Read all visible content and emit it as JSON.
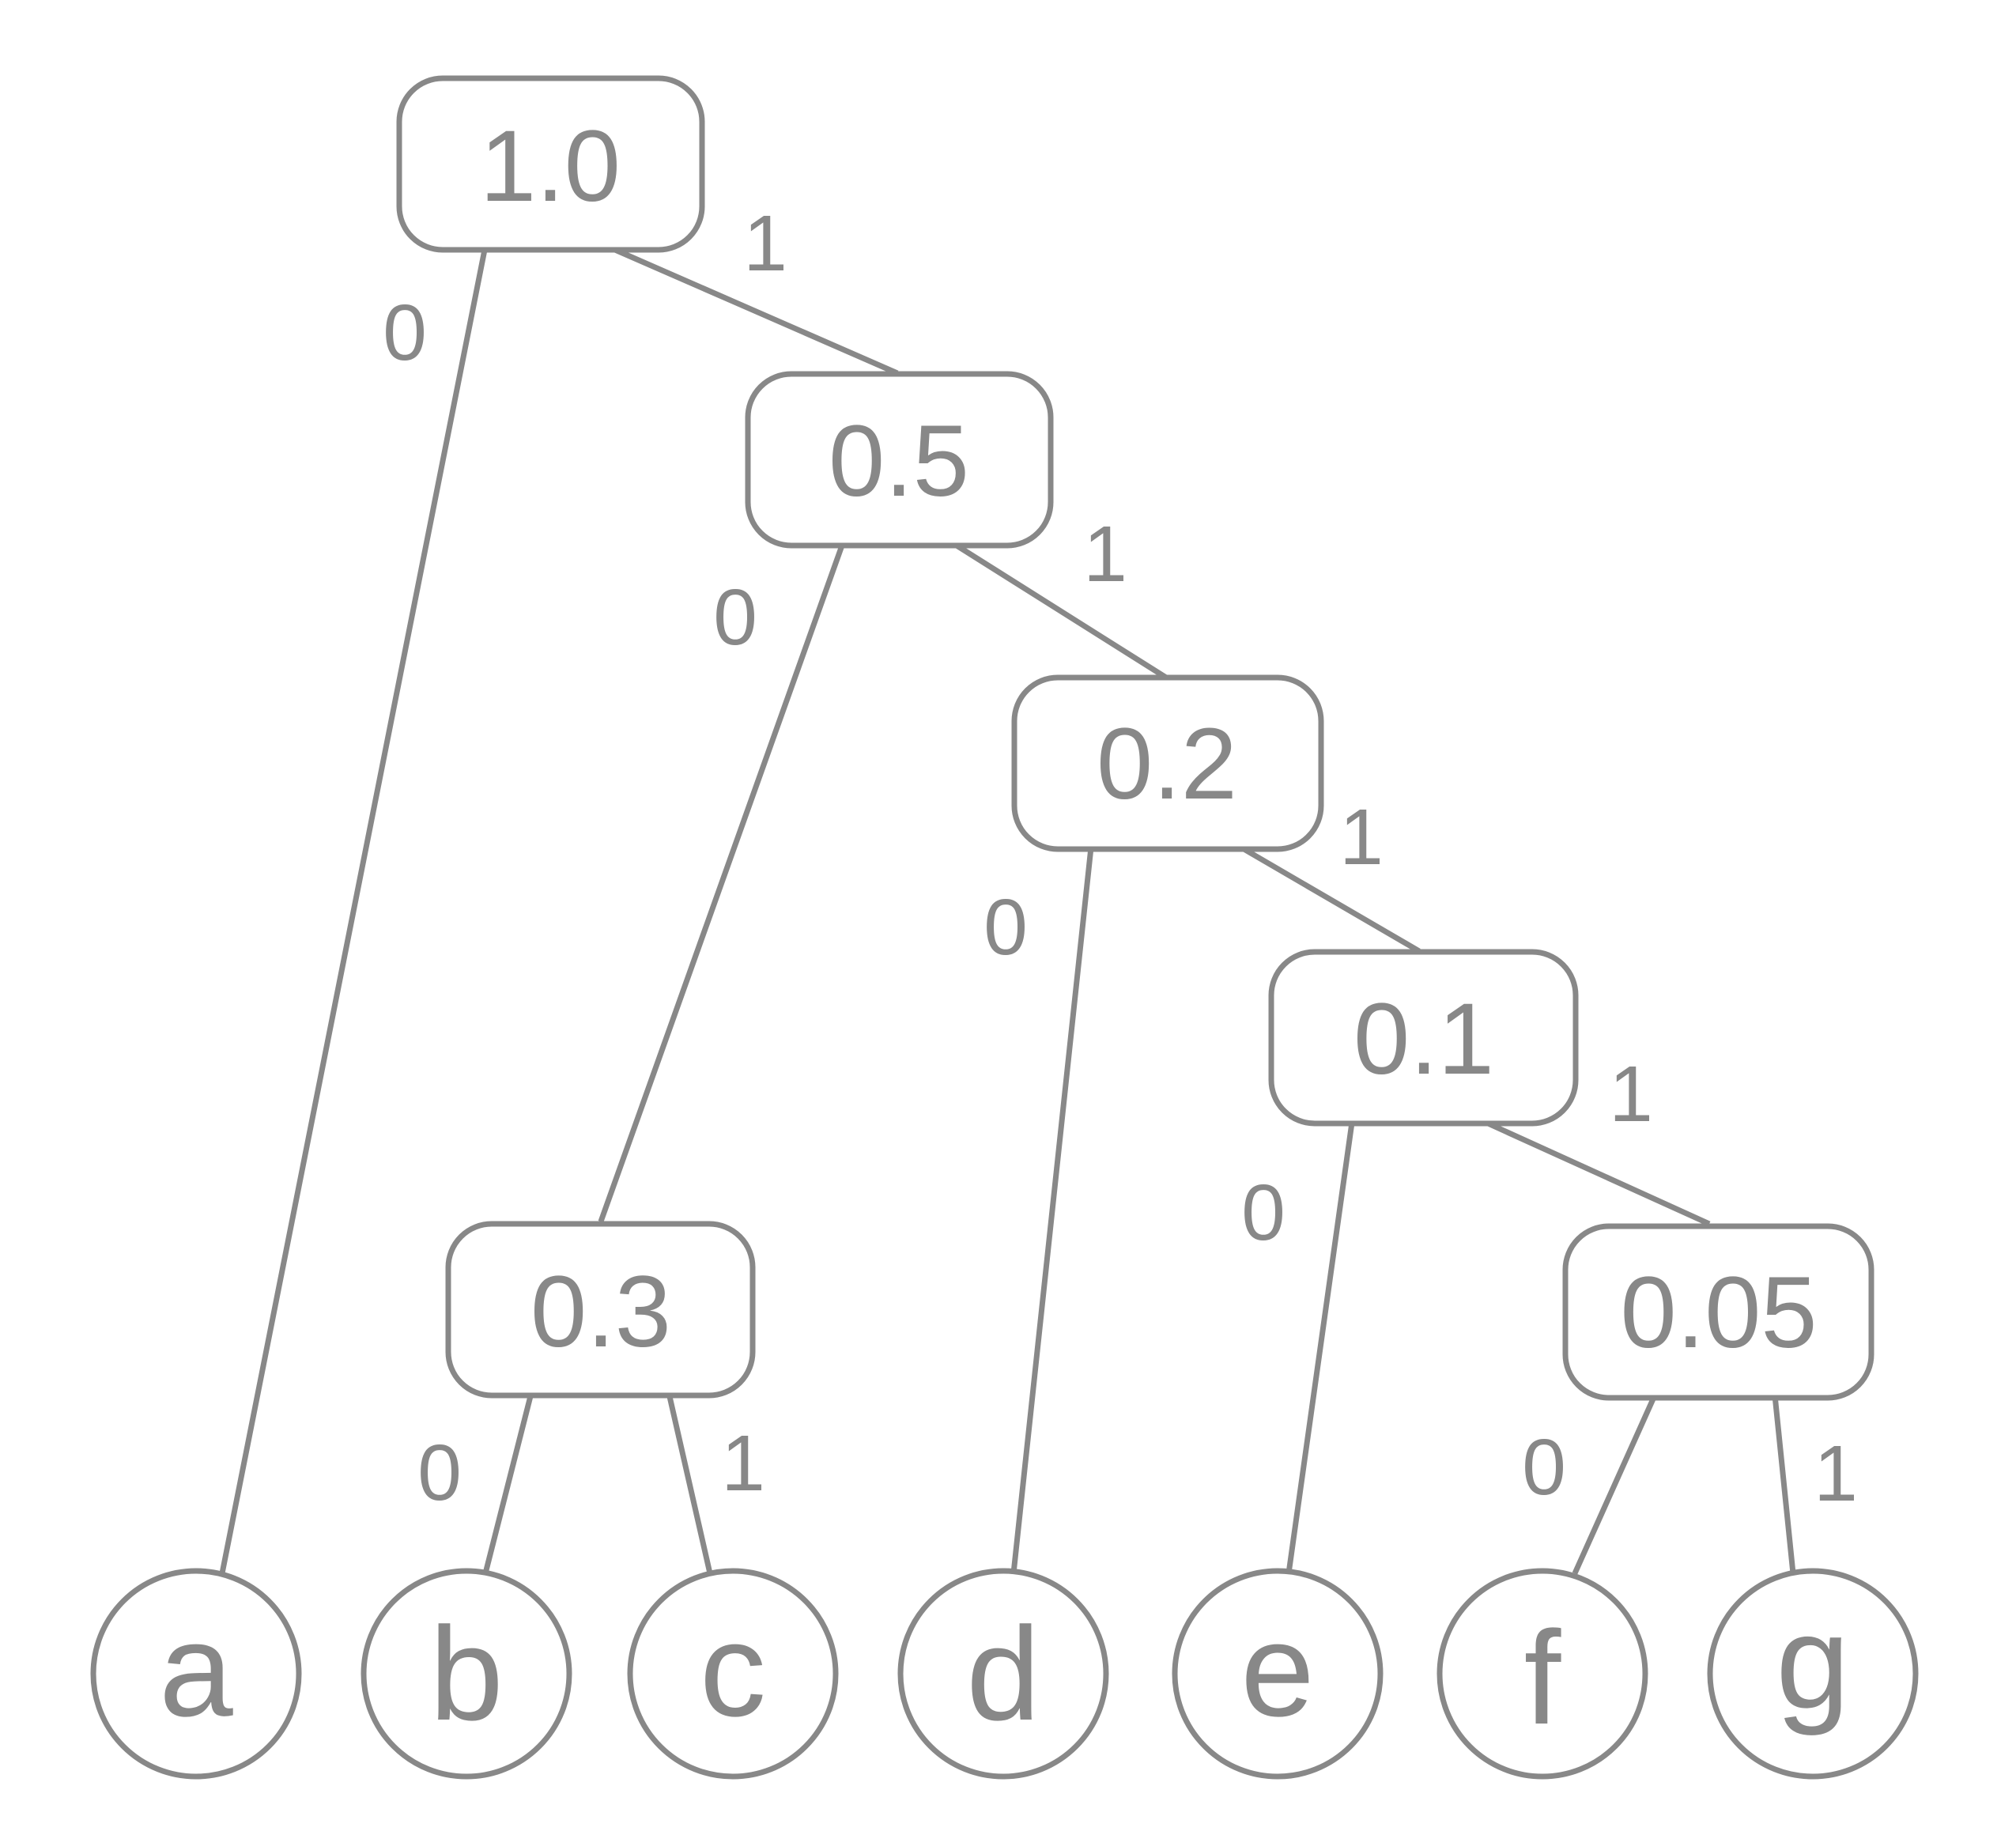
{
  "colors": {
    "stroke": "#888888",
    "text": "#888888",
    "background": "#ffffff"
  },
  "internal_nodes": [
    {
      "id": "n1",
      "label": "1.0"
    },
    {
      "id": "n05",
      "label": "0.5"
    },
    {
      "id": "n02",
      "label": "0.2"
    },
    {
      "id": "n01",
      "label": "0.1"
    },
    {
      "id": "n03",
      "label": "0.3"
    },
    {
      "id": "n005",
      "label": "0.05"
    }
  ],
  "leaves": [
    {
      "id": "la",
      "label": "a"
    },
    {
      "id": "lb",
      "label": "b"
    },
    {
      "id": "lc",
      "label": "c"
    },
    {
      "id": "ld",
      "label": "d"
    },
    {
      "id": "le",
      "label": "e"
    },
    {
      "id": "lf",
      "label": "f"
    },
    {
      "id": "lg",
      "label": "g"
    }
  ],
  "edges": [
    {
      "from": "n1",
      "to": "la",
      "bit": "0"
    },
    {
      "from": "n1",
      "to": "n05",
      "bit": "1"
    },
    {
      "from": "n05",
      "to": "n03",
      "bit": "0"
    },
    {
      "from": "n05",
      "to": "n02",
      "bit": "1"
    },
    {
      "from": "n02",
      "to": "ld",
      "bit": "0"
    },
    {
      "from": "n02",
      "to": "n01",
      "bit": "1"
    },
    {
      "from": "n01",
      "to": "le",
      "bit": "0"
    },
    {
      "from": "n01",
      "to": "n005",
      "bit": "1"
    },
    {
      "from": "n03",
      "to": "lb",
      "bit": "0"
    },
    {
      "from": "n03",
      "to": "lc",
      "bit": "1"
    },
    {
      "from": "n005",
      "to": "lf",
      "bit": "0"
    },
    {
      "from": "n005",
      "to": "lg",
      "bit": "1"
    }
  ]
}
